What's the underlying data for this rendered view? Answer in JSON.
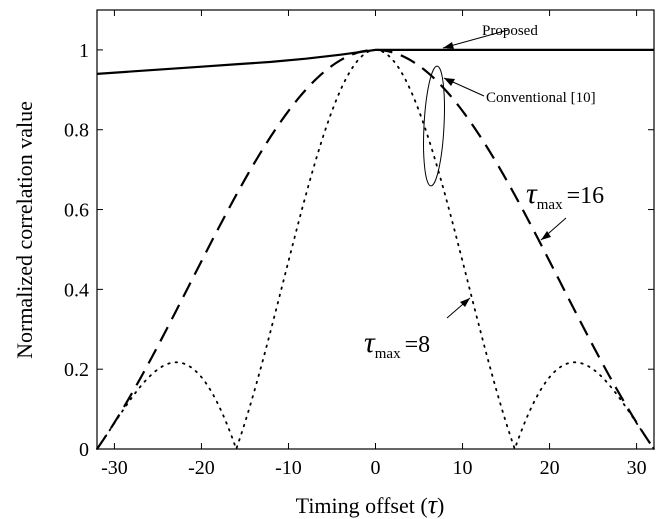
{
  "chart_data": {
    "type": "line",
    "xlabel": "Timing offset (",
    "xlabel_symbol": "τ",
    "xlabel_close": ")",
    "ylabel": "Normalized correlation value",
    "xlim": [
      -32,
      32
    ],
    "ylim": [
      0,
      1.1
    ],
    "xticks": [
      -30,
      -20,
      -10,
      0,
      10,
      20,
      30
    ],
    "yticks": [
      0,
      0.2,
      0.4,
      0.6,
      0.8,
      1
    ],
    "xtick_labels": [
      "-30",
      "-20",
      "-10",
      "0",
      "10",
      "20",
      "30"
    ],
    "ytick_labels": [
      "0",
      "0.2",
      "0.4",
      "0.6",
      "0.8",
      "1"
    ],
    "grid": false,
    "series": [
      {
        "style": "solid",
        "x": [
          -32,
          -28,
          -24,
          -20,
          -16,
          -12,
          -8,
          -4,
          -2,
          0,
          4,
          8,
          12,
          16,
          20,
          24,
          28,
          32
        ],
        "y": [
          0.94,
          0.946,
          0.952,
          0.958,
          0.964,
          0.97,
          0.978,
          0.988,
          0.994,
          1.0,
          1.0,
          1.0,
          1.0,
          1.0,
          1.0,
          1.0,
          1.0,
          1.0
        ]
      },
      {
        "style": "dashed",
        "formula": "|sinc(x/32)|",
        "tau_max": 16,
        "x_from": -32,
        "x_to": 32
      },
      {
        "style": "dotted",
        "formula": "|sinc(x/16)|",
        "tau_max": 8,
        "x_from": -32,
        "x_to": 32
      }
    ],
    "annotations": {
      "proposed": "Proposed",
      "conventional": "Conventional [10]",
      "tau16_symbol": "τ",
      "tau16_sub": "max",
      "tau16_eq": "=16",
      "tau8_symbol": "τ",
      "tau8_sub": "max",
      "tau8_eq": "=8"
    }
  }
}
